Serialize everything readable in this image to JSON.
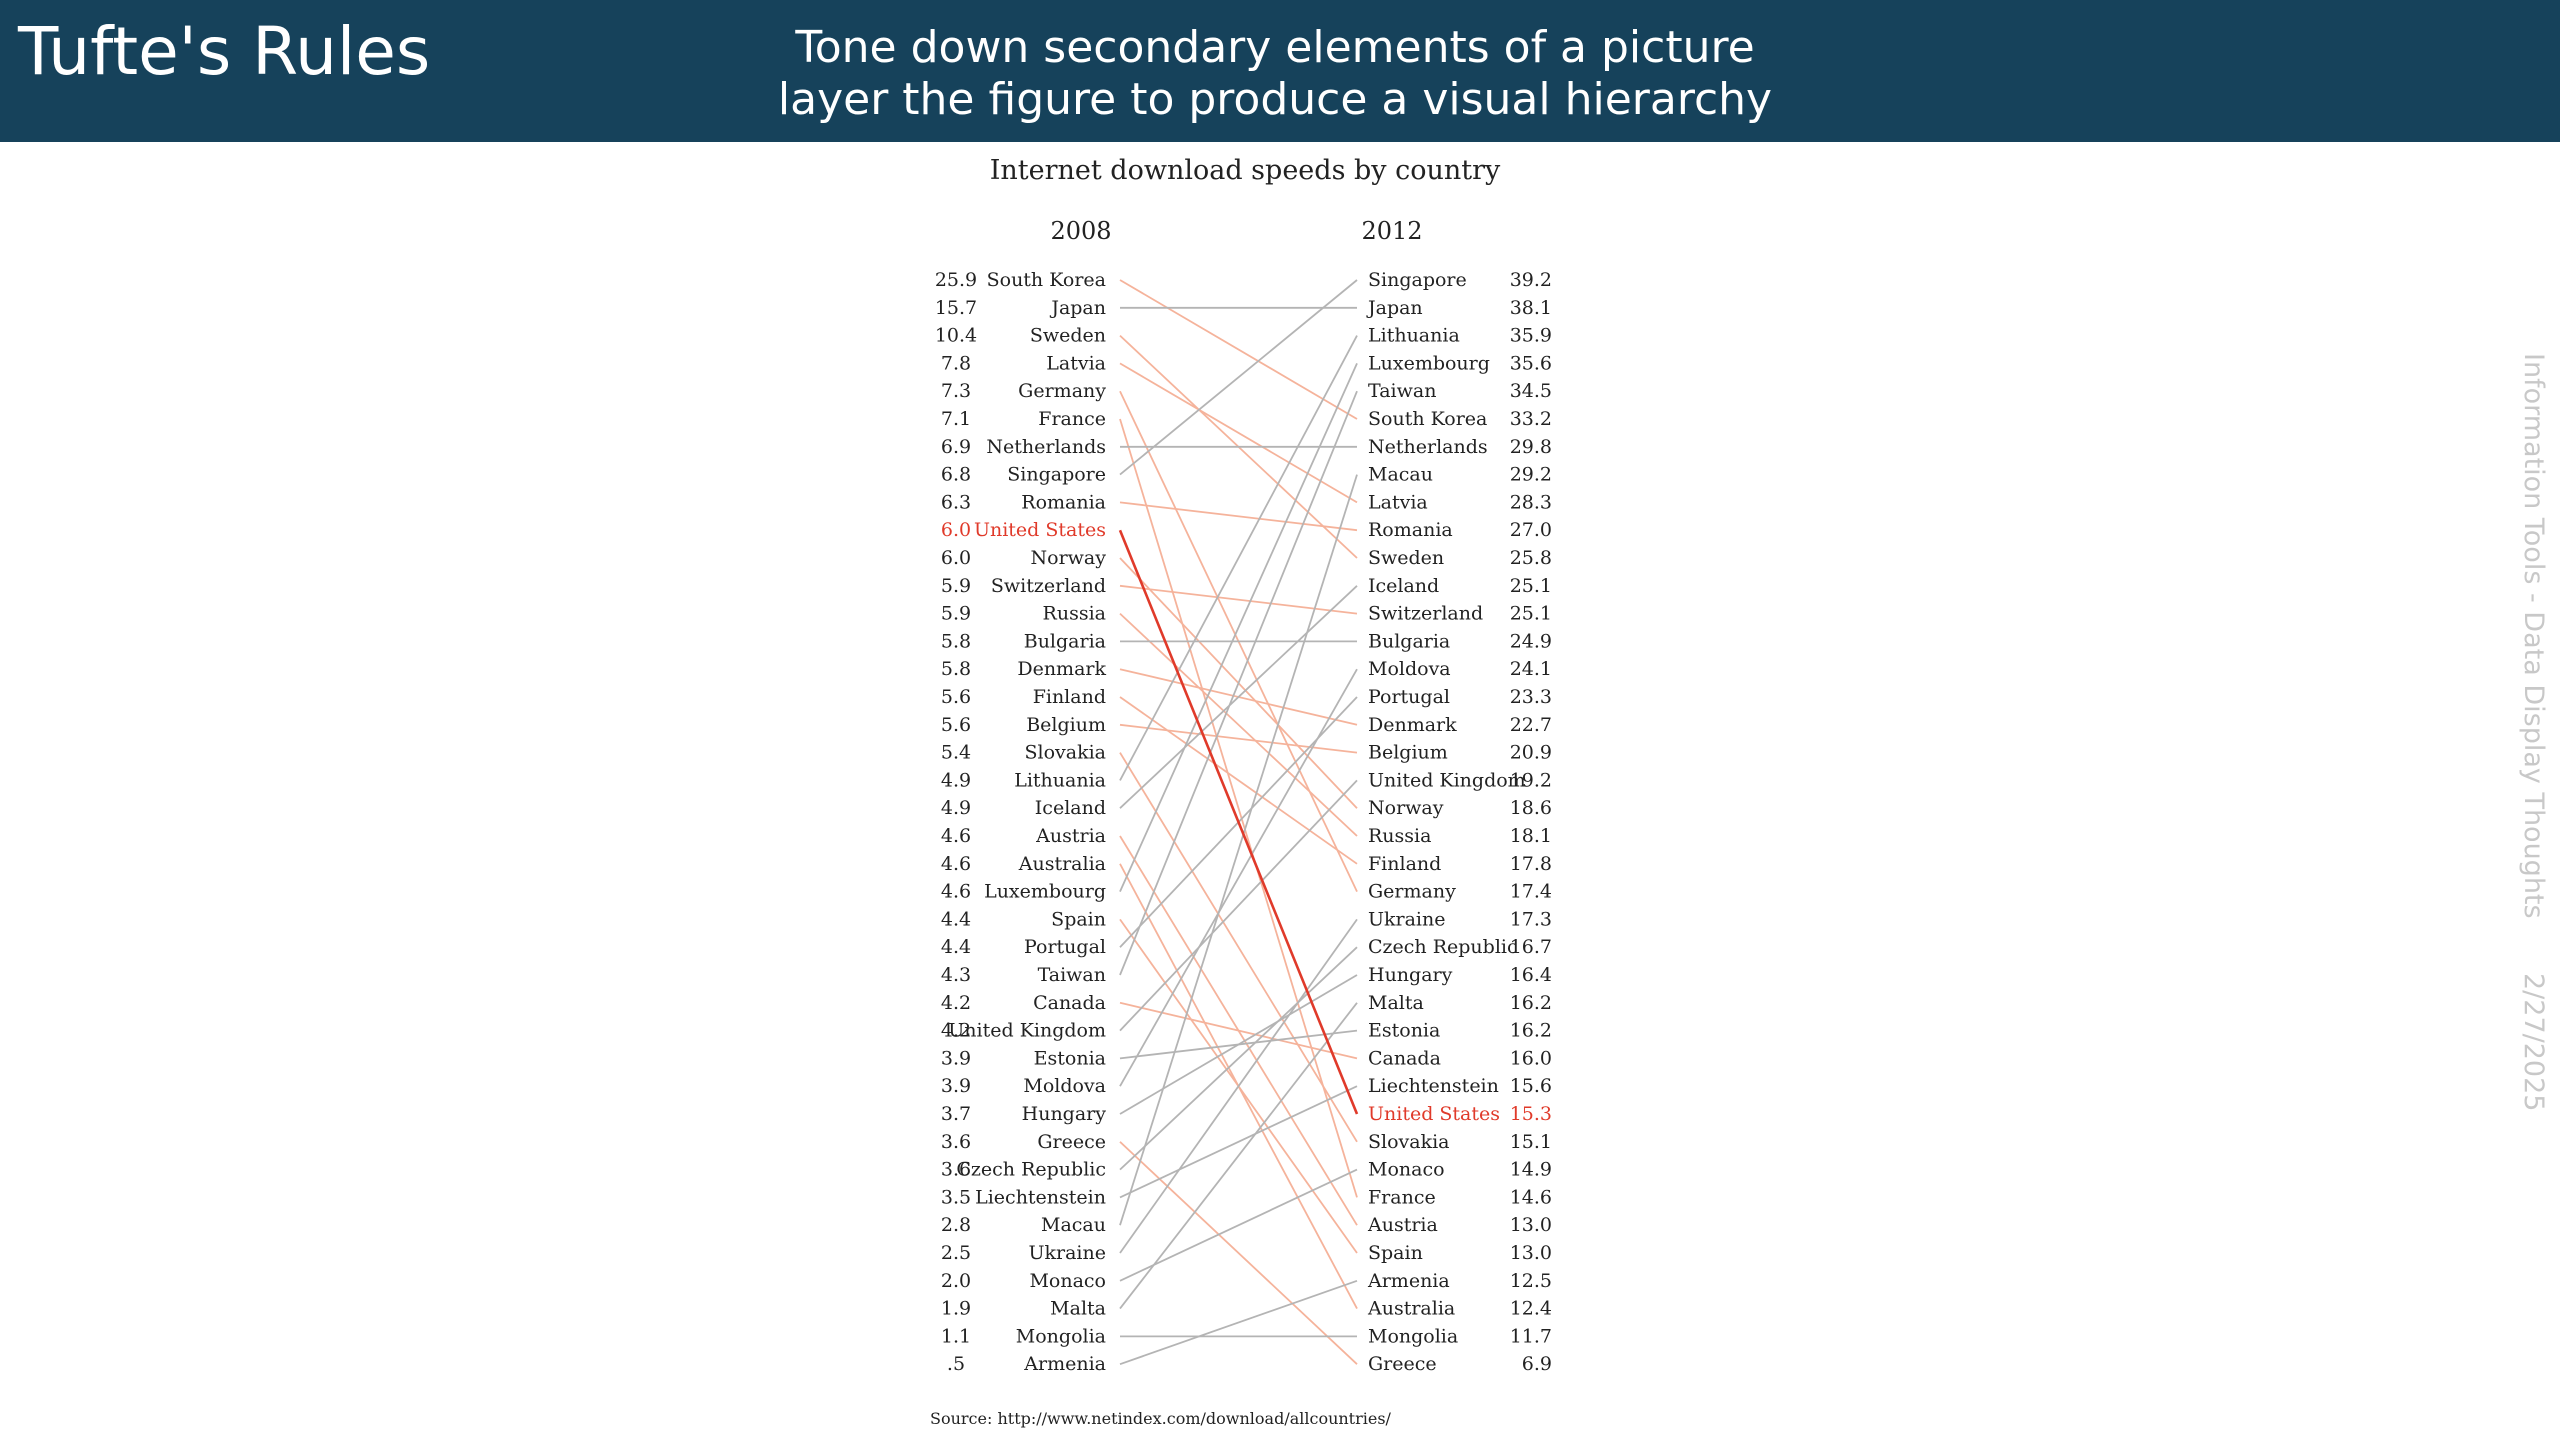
{
  "slide": {
    "title": "Tufte's Rules",
    "subtitle_line1": "Tone down secondary elements of a picture",
    "subtitle_line2": "layer the figure to produce a visual hierarchy",
    "footer_course": "Information Tools - Data Display Thoughts",
    "footer_date": "2/27/2025"
  },
  "chart_data": {
    "type": "slope",
    "title": "Internet download speeds by country",
    "left_label": "2008",
    "right_label": "2012",
    "source": "Source: http://www.netindex.com/download/allcountries/",
    "colors": {
      "increase": "#b4b4b4",
      "decrease": "#f5b39b",
      "highlight": "#e03a2a",
      "text": "#222222"
    },
    "highlight_country": "United States",
    "left": [
      {
        "country": "South Korea",
        "value": "25.9"
      },
      {
        "country": "Japan",
        "value": "15.7"
      },
      {
        "country": "Sweden",
        "value": "10.4"
      },
      {
        "country": "Latvia",
        "value": "7.8"
      },
      {
        "country": "Germany",
        "value": "7.3"
      },
      {
        "country": "France",
        "value": "7.1"
      },
      {
        "country": "Netherlands",
        "value": "6.9"
      },
      {
        "country": "Singapore",
        "value": "6.8"
      },
      {
        "country": "Romania",
        "value": "6.3"
      },
      {
        "country": "United States",
        "value": "6.0"
      },
      {
        "country": "Norway",
        "value": "6.0"
      },
      {
        "country": "Switzerland",
        "value": "5.9"
      },
      {
        "country": "Russia",
        "value": "5.9"
      },
      {
        "country": "Bulgaria",
        "value": "5.8"
      },
      {
        "country": "Denmark",
        "value": "5.8"
      },
      {
        "country": "Finland",
        "value": "5.6"
      },
      {
        "country": "Belgium",
        "value": "5.6"
      },
      {
        "country": "Slovakia",
        "value": "5.4"
      },
      {
        "country": "Lithuania",
        "value": "4.9"
      },
      {
        "country": "Iceland",
        "value": "4.9"
      },
      {
        "country": "Austria",
        "value": "4.6"
      },
      {
        "country": "Australia",
        "value": "4.6"
      },
      {
        "country": "Luxembourg",
        "value": "4.6"
      },
      {
        "country": "Spain",
        "value": "4.4"
      },
      {
        "country": "Portugal",
        "value": "4.4"
      },
      {
        "country": "Taiwan",
        "value": "4.3"
      },
      {
        "country": "Canada",
        "value": "4.2"
      },
      {
        "country": "United Kingdom",
        "value": "4.2"
      },
      {
        "country": "Estonia",
        "value": "3.9"
      },
      {
        "country": "Moldova",
        "value": "3.9"
      },
      {
        "country": "Hungary",
        "value": "3.7"
      },
      {
        "country": "Greece",
        "value": "3.6"
      },
      {
        "country": "Czech Republic",
        "value": "3.6"
      },
      {
        "country": "Liechtenstein",
        "value": "3.5"
      },
      {
        "country": "Macau",
        "value": "2.8"
      },
      {
        "country": "Ukraine",
        "value": "2.5"
      },
      {
        "country": "Monaco",
        "value": "2.0"
      },
      {
        "country": "Malta",
        "value": "1.9"
      },
      {
        "country": "Mongolia",
        "value": "1.1"
      },
      {
        "country": "Armenia",
        "value": ".5"
      }
    ],
    "right": [
      {
        "country": "Singapore",
        "value": "39.2"
      },
      {
        "country": "Japan",
        "value": "38.1"
      },
      {
        "country": "Lithuania",
        "value": "35.9"
      },
      {
        "country": "Luxembourg",
        "value": "35.6"
      },
      {
        "country": "Taiwan",
        "value": "34.5"
      },
      {
        "country": "South Korea",
        "value": "33.2"
      },
      {
        "country": "Netherlands",
        "value": "29.8"
      },
      {
        "country": "Macau",
        "value": "29.2"
      },
      {
        "country": "Latvia",
        "value": "28.3"
      },
      {
        "country": "Romania",
        "value": "27.0"
      },
      {
        "country": "Sweden",
        "value": "25.8"
      },
      {
        "country": "Iceland",
        "value": "25.1"
      },
      {
        "country": "Switzerland",
        "value": "25.1"
      },
      {
        "country": "Bulgaria",
        "value": "24.9"
      },
      {
        "country": "Moldova",
        "value": "24.1"
      },
      {
        "country": "Portugal",
        "value": "23.3"
      },
      {
        "country": "Denmark",
        "value": "22.7"
      },
      {
        "country": "Belgium",
        "value": "20.9"
      },
      {
        "country": "United Kingdom",
        "value": "19.2"
      },
      {
        "country": "Norway",
        "value": "18.6"
      },
      {
        "country": "Russia",
        "value": "18.1"
      },
      {
        "country": "Finland",
        "value": "17.8"
      },
      {
        "country": "Germany",
        "value": "17.4"
      },
      {
        "country": "Ukraine",
        "value": "17.3"
      },
      {
        "country": "Czech Republic",
        "value": "16.7"
      },
      {
        "country": "Hungary",
        "value": "16.4"
      },
      {
        "country": "Malta",
        "value": "16.2"
      },
      {
        "country": "Estonia",
        "value": "16.2"
      },
      {
        "country": "Canada",
        "value": "16.0"
      },
      {
        "country": "Liechtenstein",
        "value": "15.6"
      },
      {
        "country": "United States",
        "value": "15.3"
      },
      {
        "country": "Slovakia",
        "value": "15.1"
      },
      {
        "country": "Monaco",
        "value": "14.9"
      },
      {
        "country": "France",
        "value": "14.6"
      },
      {
        "country": "Austria",
        "value": "13.0"
      },
      {
        "country": "Spain",
        "value": "13.0"
      },
      {
        "country": "Armenia",
        "value": "12.5"
      },
      {
        "country": "Australia",
        "value": "12.4"
      },
      {
        "country": "Mongolia",
        "value": "11.7"
      },
      {
        "country": "Greece",
        "value": "6.9"
      }
    ]
  }
}
